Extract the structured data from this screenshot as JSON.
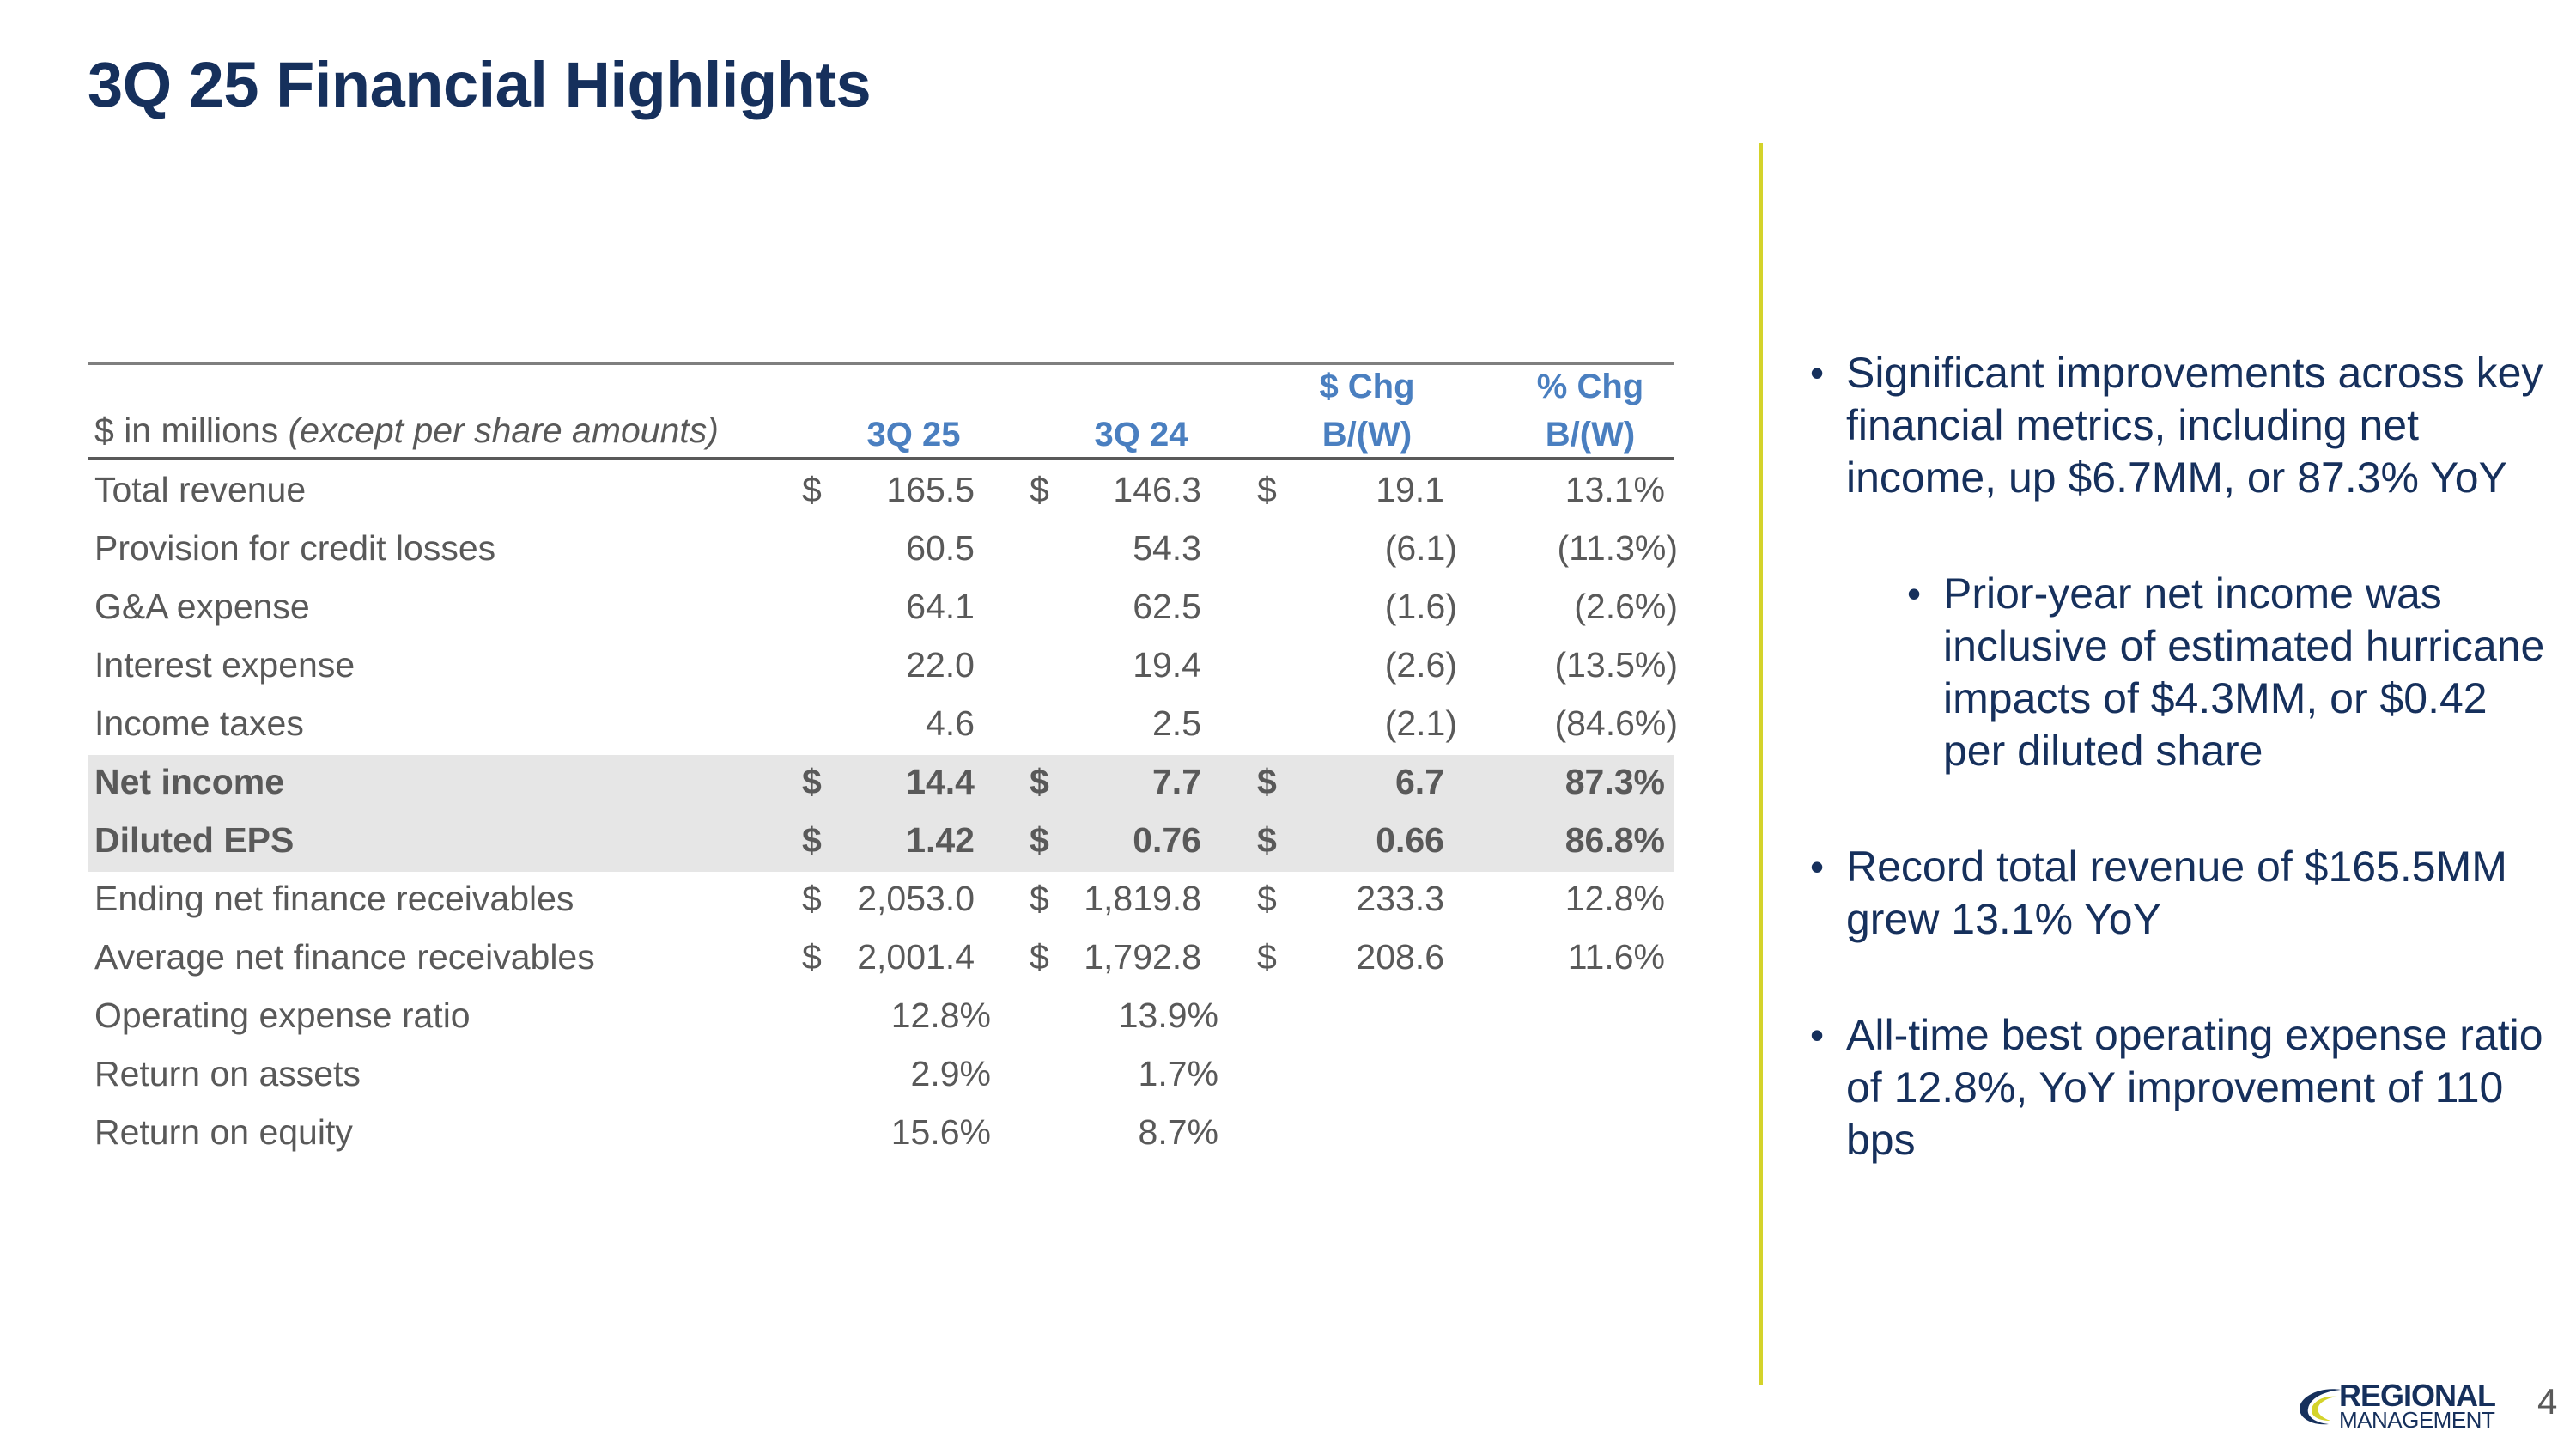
{
  "title": "3Q 25 Financial Highlights",
  "table": {
    "header": {
      "label_main": "$ in millions",
      "label_italic": "(except per share amounts)",
      "col1": "3Q 25",
      "col2": "3Q 24",
      "col3_line1": "$ Chg",
      "col3_line2": "B/(W)",
      "col4_line1": "% Chg",
      "col4_line2": "B/(W)"
    },
    "rows": [
      {
        "label": "Total revenue",
        "d1": "$",
        "v1": "165.5",
        "d2": "$",
        "v2": "146.3",
        "d3": "$",
        "v3": "19.1",
        "v4": "13.1%"
      },
      {
        "label": "Provision for credit losses",
        "v1": "60.5",
        "v2": "54.3",
        "v3": "(6.1)",
        "v4": "(11.3%)"
      },
      {
        "label": "G&A expense",
        "v1": "64.1",
        "v2": "62.5",
        "v3": "(1.6)",
        "v4": "(2.6%)"
      },
      {
        "label": "Interest expense",
        "v1": "22.0",
        "v2": "19.4",
        "v3": "(2.6)",
        "v4": "(13.5%)"
      },
      {
        "label": "Income taxes",
        "v1": "4.6",
        "v2": "2.5",
        "v3": "(2.1)",
        "v4": "(84.6%)"
      },
      {
        "label": "Net income",
        "d1": "$",
        "v1": "14.4",
        "d2": "$",
        "v2": "7.7",
        "d3": "$",
        "v3": "6.7",
        "v4": "87.3%"
      },
      {
        "label": "Diluted EPS",
        "d1": "$",
        "v1": "1.42",
        "d2": "$",
        "v2": "0.76",
        "d3": "$",
        "v3": "0.66",
        "v4": "86.8%"
      },
      {
        "label": "Ending net finance receivables",
        "d1": "$",
        "v1": "2,053.0",
        "d2": "$",
        "v2": "1,819.8",
        "d3": "$",
        "v3": "233.3",
        "v4": "12.8%"
      },
      {
        "label": "Average net finance receivables",
        "d1": "$",
        "v1": "2,001.4",
        "d2": "$",
        "v2": "1,792.8",
        "d3": "$",
        "v3": "208.6",
        "v4": "11.6%"
      },
      {
        "label": "Operating expense ratio",
        "p1": "12.8%",
        "p2": "13.9%"
      },
      {
        "label": "Return on assets",
        "p1": "2.9%",
        "p2": "1.7%"
      },
      {
        "label": "Return on equity",
        "p1": "15.6%",
        "p2": "8.7%"
      }
    ]
  },
  "bullets": [
    "Significant improvements across key financial metrics, including net income, up $6.7MM, or 87.3% YoY",
    "Prior-year net income was inclusive of estimated hurricane impacts of $4.3MM, or $0.42 per diluted share",
    "Record total revenue of $165.5MM grew 13.1% YoY",
    "All-time best operating expense ratio of 12.8%, YoY improvement of 110 bps"
  ],
  "logo": {
    "line1": "REGIONAL",
    "line2": "MANAGEMENT"
  },
  "page_number": "4",
  "colors": {
    "title": "#16305c",
    "header_blue": "#4a7fc0",
    "divider": "#d4d32a",
    "shaded_row": "#e6e6e6",
    "body_text": "#595959"
  }
}
